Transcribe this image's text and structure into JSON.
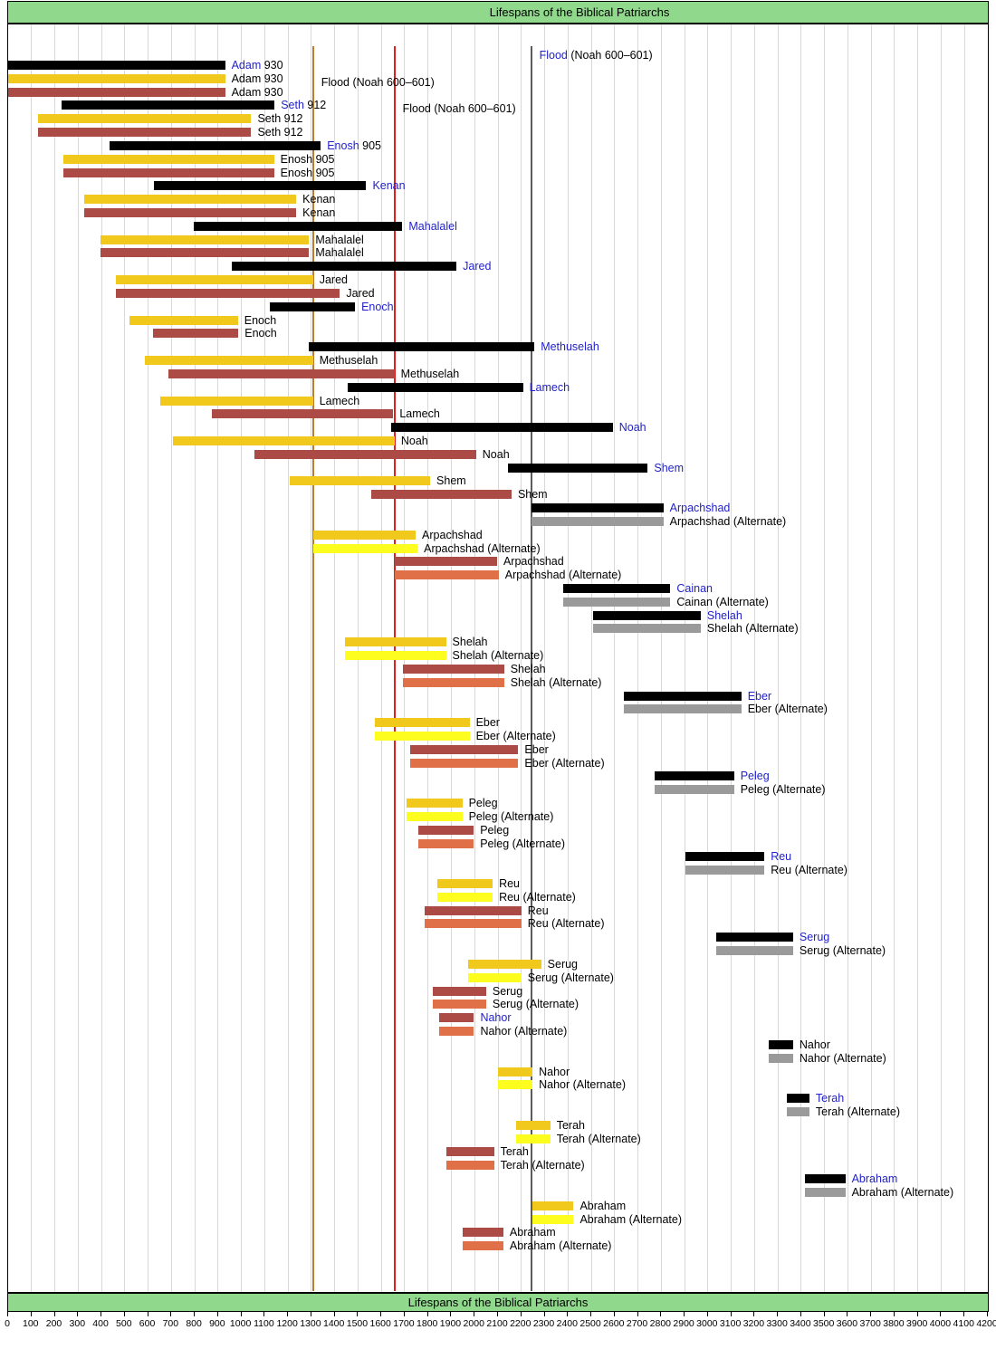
{
  "title": "Lifespans of the Biblical Patriarchs",
  "footer_title": "Lifespans of the Biblical Patriarchs",
  "chart_data": {
    "type": "bar",
    "orientation": "horizontal-gantt",
    "title": "Lifespans of the Biblical Patriarchs",
    "axis": {
      "min": 0,
      "max": 4200,
      "step": 100,
      "tick_years": [
        0,
        100,
        200,
        300,
        400,
        500,
        600,
        700,
        800,
        900,
        1000,
        1100,
        1200,
        1300,
        1400,
        1500,
        1600,
        1700,
        1800,
        1900,
        2000,
        2100,
        2200,
        2300,
        2400,
        2500,
        2600,
        2700,
        2800,
        2900,
        3000,
        3100,
        3200,
        3300,
        3400,
        3500,
        3600,
        3700,
        3800,
        3900,
        4000,
        4100,
        4200
      ]
    },
    "grid": "on",
    "series_colors": {
      "k": "#000000",
      "g": "#9a9a9a",
      "d": "#f0c91c",
      "y": "#fdfd20",
      "m": "#ac4a46",
      "o": "#e07048"
    },
    "label_colors": {
      "name_blue": "#2222c8",
      "default": "#000000"
    },
    "flood_lines": [
      {
        "year": 2242,
        "color": "#5c5c5c"
      },
      {
        "year": 1307,
        "color": "#bd7c2c"
      },
      {
        "year": 1656,
        "color": "#e21f1f"
      }
    ],
    "flood_labels": [
      {
        "prefix": "Flood",
        "rest": " (Noah 600–601)",
        "prefix_blue": true,
        "line_year": 2242
      },
      {
        "prefix": "",
        "rest": "Flood (Noah 600–601)",
        "prefix_blue": false,
        "line_year": 1307
      },
      {
        "prefix": "",
        "rest": "Flood (Noah 600–601)",
        "prefix_blue": false,
        "line_year": 1656
      }
    ],
    "columns": [
      "label",
      "series",
      "start_year",
      "end_year",
      "suffix",
      "blue_name"
    ],
    "rows": [
      [
        "Adam",
        "k",
        0,
        930,
        "930",
        1
      ],
      [
        "Adam",
        "d",
        0,
        930,
        "930",
        0
      ],
      [
        "Adam",
        "m",
        0,
        930,
        "930",
        0
      ],
      [
        "Seth",
        "k",
        230,
        1142,
        "912",
        1
      ],
      [
        "Seth",
        "d",
        130,
        1042,
        "912",
        0
      ],
      [
        "Seth",
        "m",
        130,
        1042,
        "912",
        0
      ],
      [
        "Enosh",
        "k",
        435,
        1340,
        "905",
        1
      ],
      [
        "Enosh",
        "d",
        235,
        1140,
        "905",
        0
      ],
      [
        "Enosh",
        "m",
        235,
        1140,
        "905",
        0
      ],
      [
        "Kenan",
        "k",
        625,
        1535,
        "",
        1
      ],
      [
        "Kenan",
        "d",
        325,
        1235,
        "",
        0
      ],
      [
        "Kenan",
        "m",
        325,
        1235,
        "",
        0
      ],
      [
        "Mahalalel",
        "k",
        795,
        1690,
        "",
        1
      ],
      [
        "Mahalalel",
        "d",
        395,
        1290,
        "",
        0
      ],
      [
        "Mahalalel",
        "m",
        395,
        1290,
        "",
        0
      ],
      [
        "Jared",
        "k",
        960,
        1922,
        "",
        1
      ],
      [
        "Jared",
        "d",
        460,
        1307,
        "",
        0
      ],
      [
        "Jared",
        "m",
        460,
        1422,
        "",
        0
      ],
      [
        "Enoch",
        "k",
        1122,
        1487,
        "",
        1
      ],
      [
        "Enoch",
        "d",
        522,
        985,
        "",
        0
      ],
      [
        "Enoch",
        "m",
        622,
        987,
        "",
        0
      ],
      [
        "Methuselah",
        "k",
        1287,
        2256,
        "",
        1
      ],
      [
        "Methuselah",
        "d",
        587,
        1307,
        "",
        0
      ],
      [
        "Methuselah",
        "m",
        687,
        1656,
        "",
        0
      ],
      [
        "Lamech",
        "k",
        1454,
        2207,
        "",
        1
      ],
      [
        "Lamech",
        "d",
        654,
        1307,
        "",
        0
      ],
      [
        "Lamech",
        "m",
        874,
        1651,
        "",
        0
      ],
      [
        "Noah",
        "k",
        1642,
        2592,
        "",
        1
      ],
      [
        "Noah",
        "d",
        707,
        1657,
        "",
        0
      ],
      [
        "Noah",
        "m",
        1056,
        2006,
        "",
        0
      ],
      [
        "Shem",
        "k",
        2142,
        2742,
        "",
        1
      ],
      [
        "Shem",
        "d",
        1209,
        1809,
        "",
        0
      ],
      [
        "Shem",
        "m",
        1558,
        2158,
        "",
        0
      ],
      [
        "Arpachshad",
        "k",
        2244,
        2809,
        "",
        1
      ],
      [
        "Arpachshad (Alternate)",
        "g",
        2244,
        2809,
        "",
        0
      ],
      [
        "Arpachshad",
        "d",
        1309,
        1747,
        "",
        0
      ],
      [
        "Arpachshad (Alternate)",
        "y",
        1309,
        1755,
        "",
        0
      ],
      [
        "Arpachshad",
        "m",
        1658,
        2096,
        "",
        0
      ],
      [
        "Arpachshad (Alternate)",
        "o",
        1658,
        2103,
        "",
        0
      ],
      [
        "Cainan",
        "k",
        2379,
        2839,
        "",
        1
      ],
      [
        "Cainan (Alternate)",
        "g",
        2379,
        2839,
        "",
        0
      ],
      [
        "Shelah",
        "k",
        2509,
        2969,
        "",
        1
      ],
      [
        "Shelah (Alternate)",
        "g",
        2509,
        2969,
        "",
        0
      ],
      [
        "Shelah",
        "d",
        1444,
        1877,
        "",
        0
      ],
      [
        "Shelah (Alternate)",
        "y",
        1444,
        1877,
        "",
        0
      ],
      [
        "Shelah",
        "m",
        1693,
        2126,
        "",
        0
      ],
      [
        "Shelah (Alternate)",
        "o",
        1693,
        2126,
        "",
        0
      ],
      [
        "Eber",
        "k",
        2639,
        3143,
        "",
        1
      ],
      [
        "Eber (Alternate)",
        "g",
        2639,
        3143,
        "",
        0
      ],
      [
        "Eber",
        "d",
        1574,
        1978,
        "",
        0
      ],
      [
        "Eber (Alternate)",
        "y",
        1574,
        1978,
        "",
        0
      ],
      [
        "Eber",
        "m",
        1723,
        2187,
        "",
        0
      ],
      [
        "Eber (Alternate)",
        "o",
        1723,
        2187,
        "",
        0
      ],
      [
        "Peleg",
        "k",
        2773,
        3112,
        "",
        1
      ],
      [
        "Peleg (Alternate)",
        "g",
        2773,
        3112,
        "",
        0
      ],
      [
        "Peleg",
        "d",
        1708,
        1947,
        "",
        0
      ],
      [
        "Peleg (Alternate)",
        "y",
        1708,
        1947,
        "",
        0
      ],
      [
        "Peleg",
        "m",
        1757,
        1996,
        "",
        0
      ],
      [
        "Peleg (Alternate)",
        "o",
        1757,
        1996,
        "",
        0
      ],
      [
        "Reu",
        "k",
        2903,
        3242,
        "",
        1
      ],
      [
        "Reu (Alternate)",
        "g",
        2903,
        3242,
        "",
        0
      ],
      [
        "Reu",
        "d",
        1838,
        2077,
        "",
        0
      ],
      [
        "Reu (Alternate)",
        "y",
        1838,
        2077,
        "",
        0
      ],
      [
        "Reu",
        "m",
        1787,
        2200,
        "",
        0
      ],
      [
        "Reu (Alternate)",
        "o",
        1787,
        2200,
        "",
        0
      ],
      [
        "Serug",
        "k",
        3035,
        3365,
        "",
        1
      ],
      [
        "Serug (Alternate)",
        "g",
        3035,
        3365,
        "",
        0
      ],
      [
        "Serug",
        "d",
        1970,
        2285,
        "",
        0
      ],
      [
        "Serug (Alternate)",
        "y",
        1970,
        2200,
        "",
        0
      ],
      [
        "Serug",
        "m",
        1819,
        2049,
        "",
        0
      ],
      [
        "Serug (Alternate)",
        "o",
        1819,
        2049,
        "",
        0
      ],
      [
        "Nahor",
        "m",
        1849,
        1997,
        "",
        1
      ],
      [
        "Nahor (Alternate)",
        "o",
        1849,
        1997,
        "",
        0
      ],
      [
        "Nahor",
        "k",
        3260,
        3365,
        "",
        0
      ],
      [
        "Nahor (Alternate)",
        "g",
        3260,
        3365,
        "",
        0
      ],
      [
        "Nahor",
        "d",
        2100,
        2248,
        "",
        0
      ],
      [
        "Nahor (Alternate)",
        "y",
        2100,
        2248,
        "",
        0
      ],
      [
        "Terah",
        "k",
        3340,
        3435,
        "",
        1
      ],
      [
        "Terah (Alternate)",
        "g",
        3340,
        3435,
        "",
        0
      ],
      [
        "Terah",
        "d",
        2179,
        2324,
        "",
        0
      ],
      [
        "Terah (Alternate)",
        "y",
        2179,
        2324,
        "",
        0
      ],
      [
        "Terah",
        "m",
        1878,
        2083,
        "",
        0
      ],
      [
        "Terah (Alternate)",
        "o",
        1878,
        2083,
        "",
        0
      ],
      [
        "Abraham",
        "k",
        3414,
        3589,
        "",
        1
      ],
      [
        "Abraham (Alternate)",
        "g",
        3414,
        3589,
        "",
        0
      ],
      [
        "Abraham",
        "d",
        2249,
        2424,
        "",
        0
      ],
      [
        "Abraham (Alternate)",
        "y",
        2249,
        2424,
        "",
        0
      ],
      [
        "Abraham",
        "m",
        1948,
        2123,
        "",
        0
      ],
      [
        "Abraham (Alternate)",
        "o",
        1948,
        2123,
        "",
        0
      ]
    ]
  }
}
